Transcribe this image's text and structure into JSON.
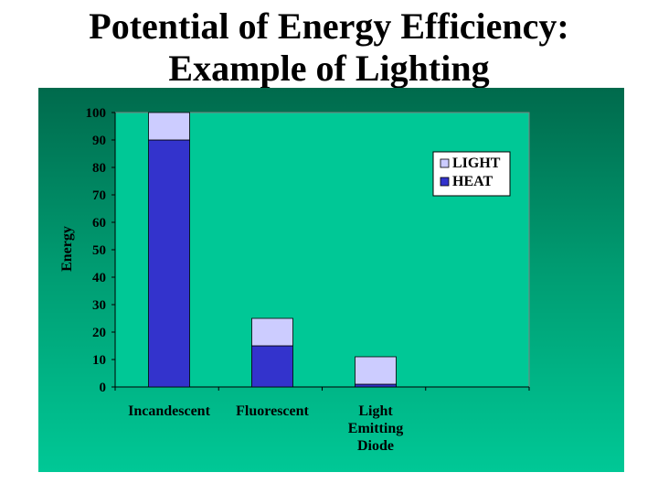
{
  "slide": {
    "title_line1": "Potential of Energy Efficiency:",
    "title_line2": "Example of Lighting"
  },
  "colors": {
    "light": "#ccccff",
    "heat": "#3333cc",
    "panel_top": "#006a4c",
    "panel_bottom": "#00c896",
    "plot_area": "#00c896"
  },
  "chart_data": {
    "type": "bar",
    "stacked": true,
    "title": "",
    "xlabel": "",
    "ylabel": "Energy",
    "ylim": [
      0,
      100
    ],
    "yticks": [
      0,
      10,
      20,
      30,
      40,
      50,
      60,
      70,
      80,
      90,
      100
    ],
    "grid": false,
    "legend_position": "top-right",
    "categories": [
      [
        "Incandescent"
      ],
      [
        "Fluorescent"
      ],
      [
        "Light",
        "Emitting",
        "Diode"
      ]
    ],
    "series": [
      {
        "name": "HEAT",
        "values": [
          90,
          15,
          1
        ]
      },
      {
        "name": "LIGHT",
        "values": [
          10,
          10,
          10
        ]
      }
    ],
    "legend": [
      "LIGHT",
      "HEAT"
    ]
  }
}
